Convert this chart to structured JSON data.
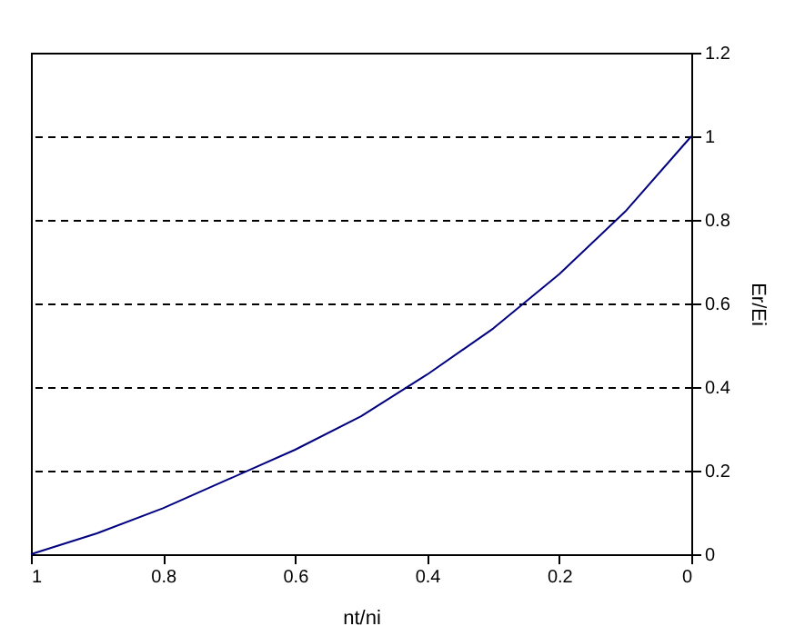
{
  "chart_data": {
    "type": "line",
    "xlabel": "nt/ni",
    "ylabel": "Er/Ei",
    "x": [
      1,
      0.9,
      0.8,
      0.7,
      0.6,
      0.5,
      0.4,
      0.3,
      0.2,
      0.1,
      0
    ],
    "series": [
      {
        "color": "#000080",
        "values": [
          0,
          0.05,
          0.11,
          0.18,
          0.25,
          0.33,
          0.43,
          0.54,
          0.67,
          0.82,
          1
        ]
      }
    ],
    "xlim": [
      1,
      0
    ],
    "xticks": [
      1,
      0.8,
      0.6,
      0.4,
      0.2,
      0
    ],
    "ylim": [
      0,
      1.2
    ],
    "yticks": [
      0,
      0.2,
      0.4,
      0.6,
      0.8,
      1,
      1.2
    ],
    "grid": "y",
    "line_style": "solid",
    "marker": "none"
  }
}
